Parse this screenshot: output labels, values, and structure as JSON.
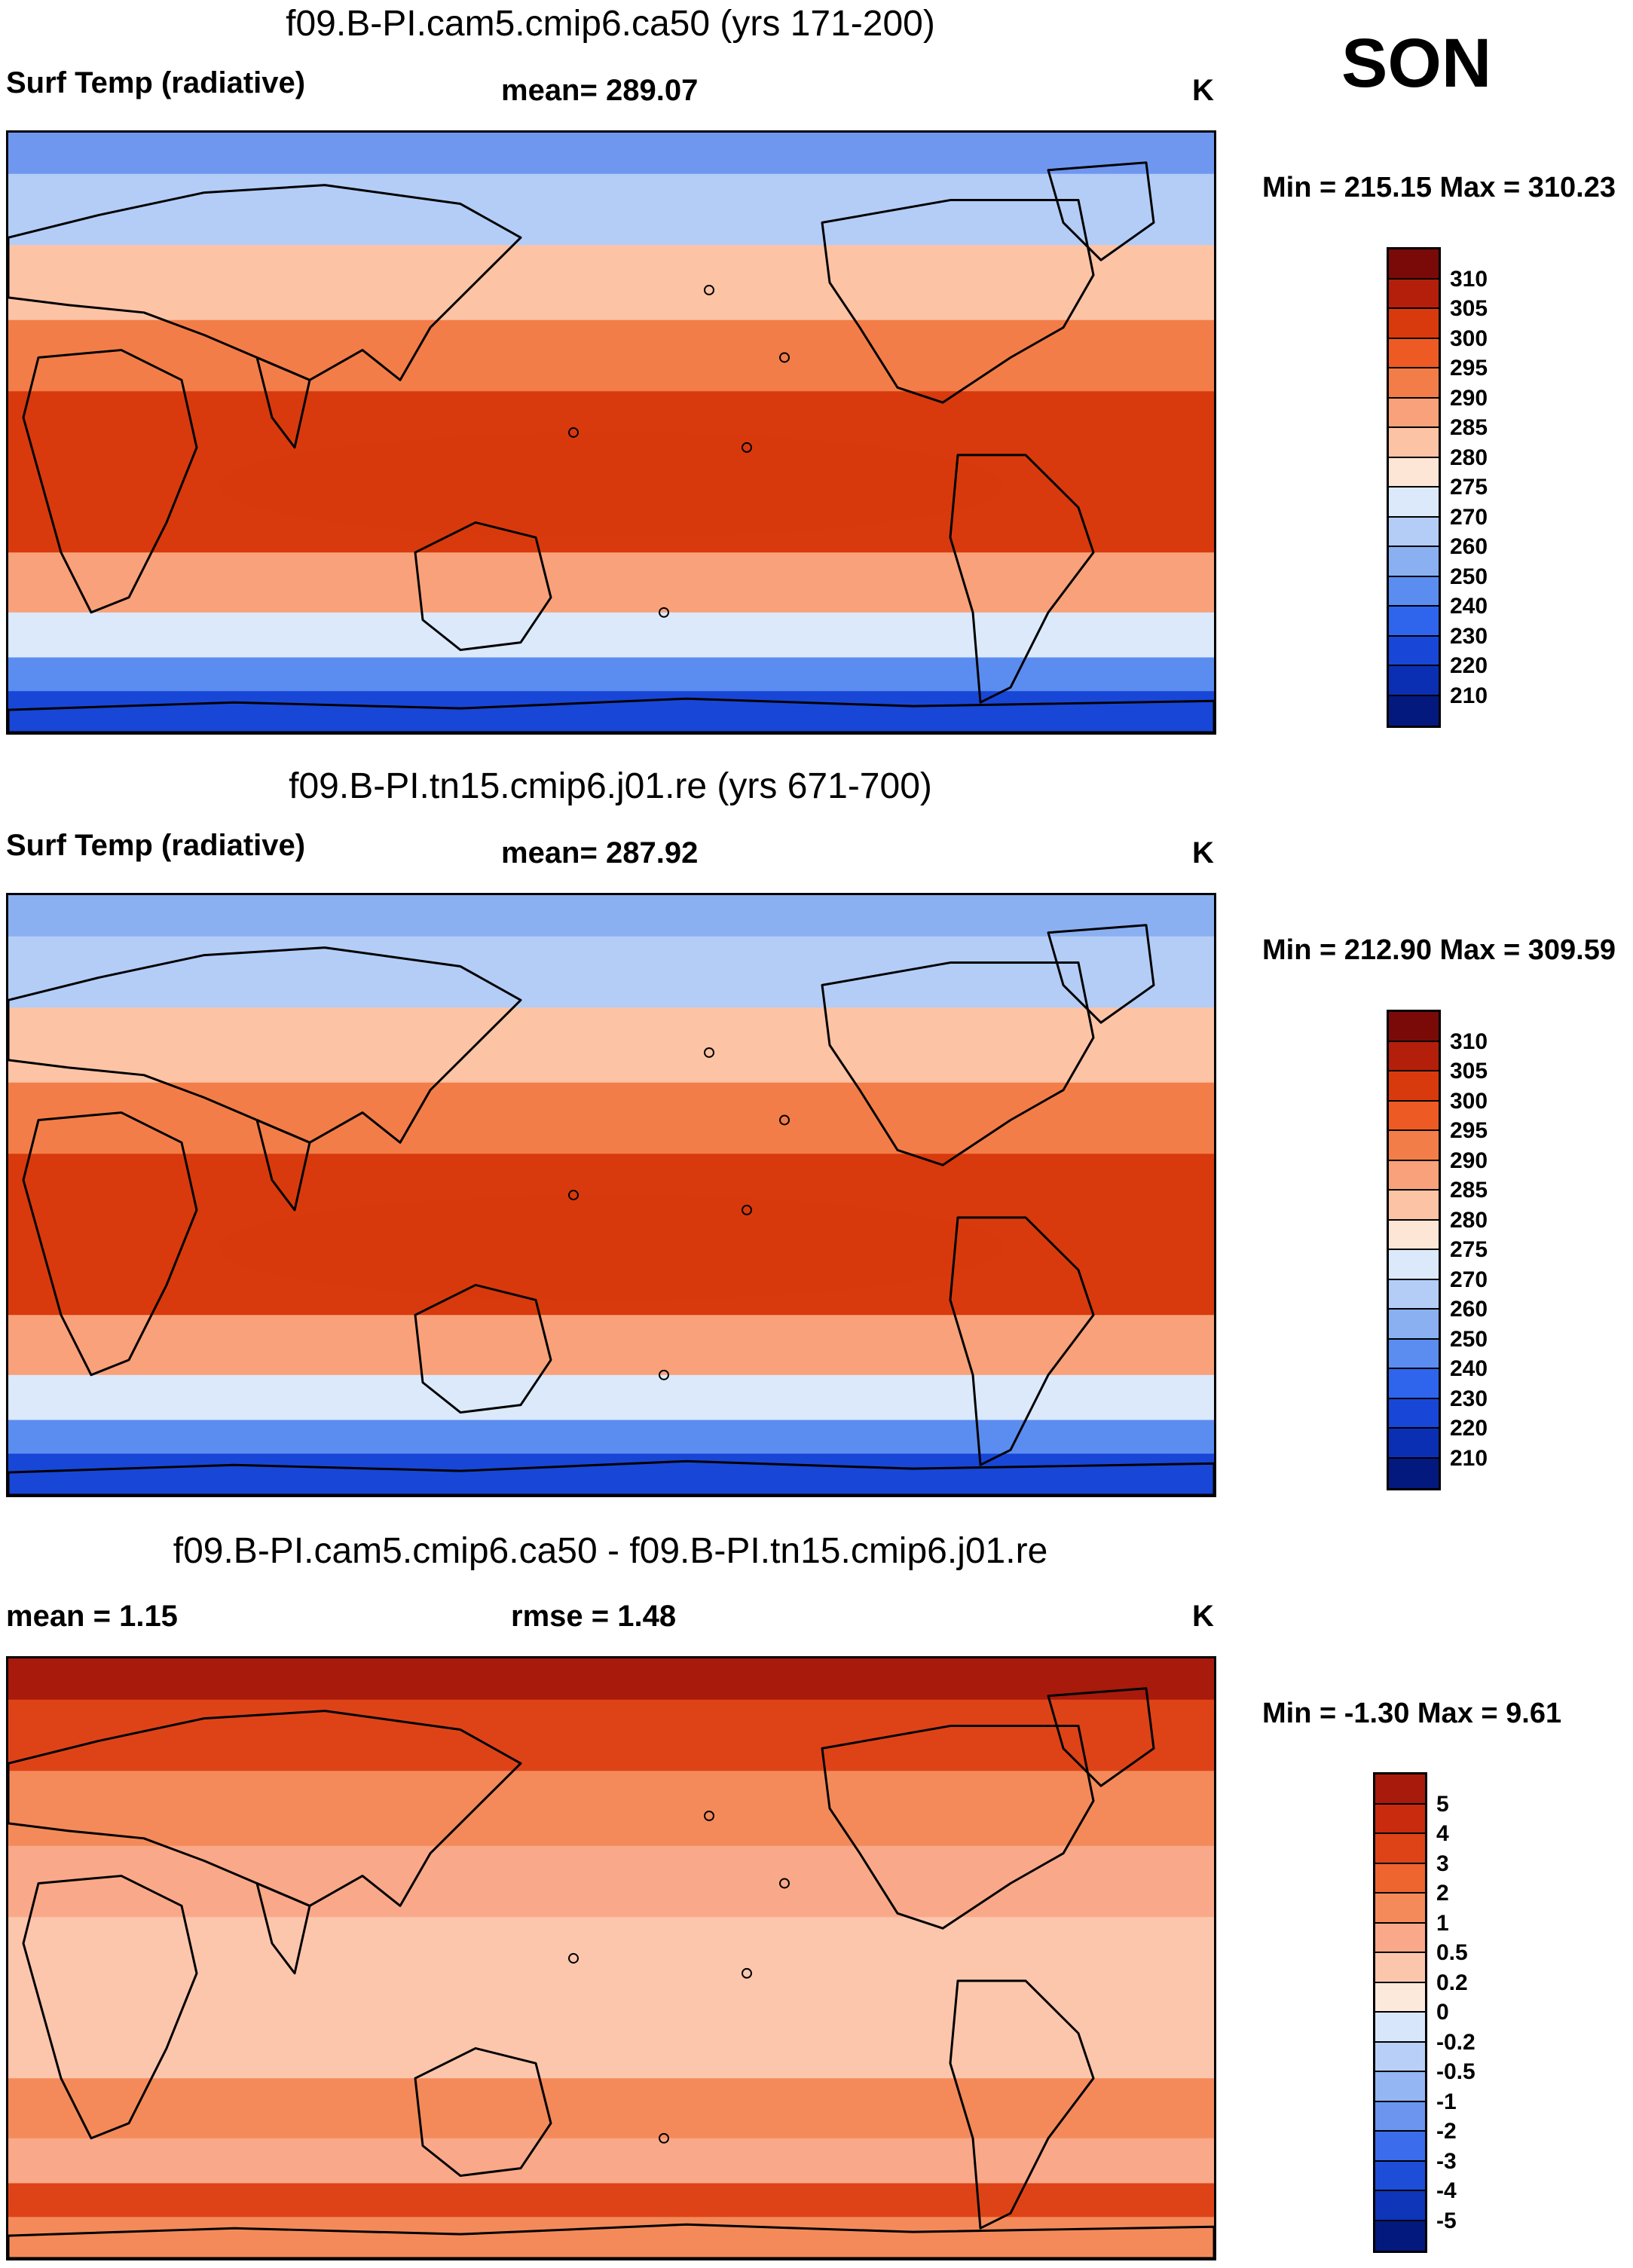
{
  "season": "SON",
  "panels": [
    {
      "title": "f09.B-PI.cam5.cmip6.ca50 (yrs 171-200)",
      "left_label": "Surf Temp (radiative)",
      "center_label": "mean= 289.07",
      "units": "K",
      "minmax": "Min = 215.15 Max = 310.23",
      "colorbar": {
        "labels": [
          "310",
          "305",
          "300",
          "295",
          "290",
          "285",
          "280",
          "275",
          "270",
          "260",
          "250",
          "240",
          "230",
          "220",
          "210"
        ],
        "colors": [
          "#7a0a07",
          "#b41f0b",
          "#d83a0d",
          "#ee5a24",
          "#f37d48",
          "#f9a17a",
          "#fcc3a5",
          "#fde6d6",
          "#dbe9fb",
          "#b3cdf7",
          "#8ab0f2",
          "#5b8cf0",
          "#2f64ec",
          "#1846d6",
          "#0b2fb3",
          "#04197e"
        ]
      },
      "map_palette": {
        "arctic": "#6f97ef",
        "high_lat": "#b3cdf7",
        "mid_lat": "#fcc3a5",
        "subtrop": "#f37d48",
        "tropics": "#d83a0d",
        "south_mid": "#f9a17a",
        "south_cool": "#dbe9fb",
        "southern_ocean": "#5b8cf0",
        "antarctica": "#1846d6"
      }
    },
    {
      "title": "f09.B-PI.tn15.cmip6.j01.re (yrs 671-700)",
      "left_label": "Surf Temp (radiative)",
      "center_label": "mean= 287.92",
      "units": "K",
      "minmax": "Min = 212.90 Max = 309.59",
      "colorbar": {
        "labels": [
          "310",
          "305",
          "300",
          "295",
          "290",
          "285",
          "280",
          "275",
          "270",
          "260",
          "250",
          "240",
          "230",
          "220",
          "210"
        ],
        "colors": [
          "#7a0a07",
          "#b41f0b",
          "#d83a0d",
          "#ee5a24",
          "#f37d48",
          "#f9a17a",
          "#fcc3a5",
          "#fde6d6",
          "#dbe9fb",
          "#b3cdf7",
          "#8ab0f2",
          "#5b8cf0",
          "#2f64ec",
          "#1846d6",
          "#0b2fb3",
          "#04197e"
        ]
      },
      "map_palette": {
        "arctic": "#8ab0f2",
        "high_lat": "#b3cdf7",
        "mid_lat": "#fcc3a5",
        "subtrop": "#f37d48",
        "tropics": "#d83a0d",
        "south_mid": "#f9a17a",
        "south_cool": "#dbe9fb",
        "southern_ocean": "#5b8cf0",
        "antarctica": "#1846d6"
      }
    },
    {
      "title": "f09.B-PI.cam5.cmip6.ca50 - f09.B-PI.tn15.cmip6.j01.re",
      "left_label": "mean =   1.15",
      "center_label": "rmse =   1.48",
      "units": "K",
      "minmax": "Min =  -1.30 Max =   9.61",
      "colorbar": {
        "labels": [
          "5",
          "4",
          "3",
          "2",
          "1",
          "0.5",
          "0.2",
          "0",
          "-0.2",
          "-0.5",
          "-1",
          "-2",
          "-3",
          "-4",
          "-5"
        ],
        "colors": [
          "#a81a0c",
          "#c82b0e",
          "#de4318",
          "#ee6530",
          "#f48a5a",
          "#f9a989",
          "#fcc6ad",
          "#fde8dc",
          "#d8e6fb",
          "#b8d0f7",
          "#94b6f3",
          "#6b95ef",
          "#3a6cec",
          "#1e4ed8",
          "#0f35b8",
          "#04197e"
        ]
      },
      "map_palette": {
        "arctic": "#a81a0c",
        "high_lat": "#de4318",
        "mid_lat": "#f48a5a",
        "subtrop": "#f9a989",
        "tropics": "#fcc6ad",
        "south_mid": "#f48a5a",
        "south_cool": "#f9a989",
        "southern_ocean": "#de4318",
        "antarctica": "#f48a5a"
      }
    }
  ]
}
